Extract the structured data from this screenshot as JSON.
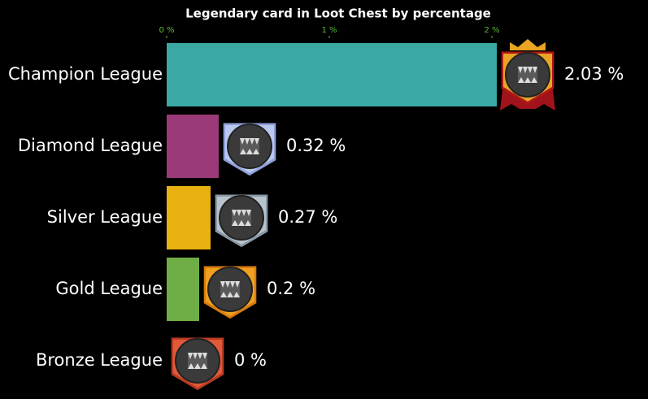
{
  "chart_data": {
    "type": "bar",
    "orientation": "horizontal",
    "title": "Legendary card in Loot Chest by percentage",
    "categories": [
      "Champion League",
      "Diamond League",
      "Silver League",
      "Gold League",
      "Bronze League"
    ],
    "values": [
      2.03,
      0.32,
      0.27,
      0.2,
      0
    ],
    "value_labels": [
      "2.03 %",
      "0.32 %",
      "0.27 %",
      "0.2 %",
      "0 %"
    ],
    "colors": [
      "#3aa9a4",
      "#9b3a78",
      "#e9b10f",
      "#6fae46",
      "#d9573a"
    ],
    "xlim": [
      0,
      2.03
    ],
    "xticks": [
      {
        "value": 0,
        "label": "0 %"
      },
      {
        "value": 1,
        "label": "1 %"
      },
      {
        "value": 2,
        "label": "2 %"
      }
    ]
  }
}
